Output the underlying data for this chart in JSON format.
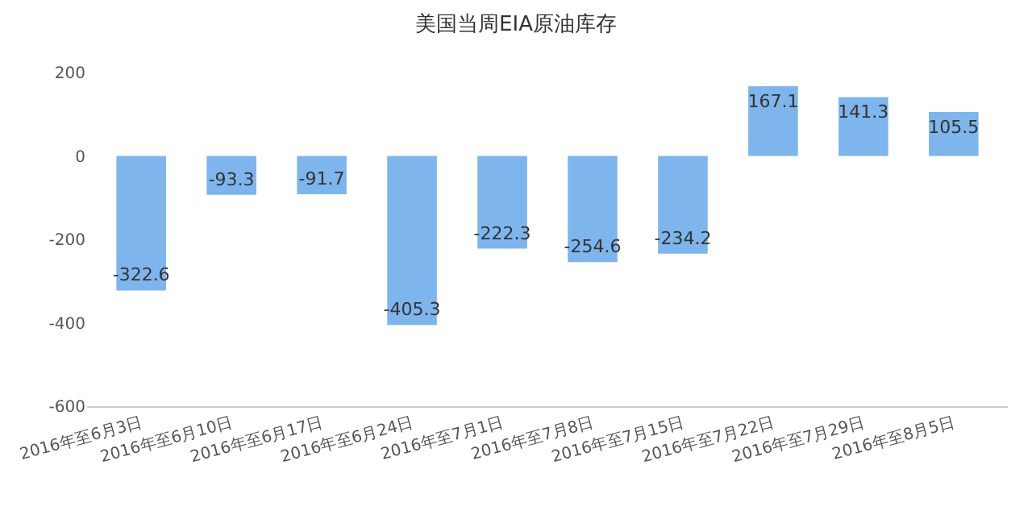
{
  "chart_data": {
    "type": "bar",
    "title": "美国当周EIA原油库存",
    "categories": [
      "2016年至6月3日",
      "2016年至6月10日",
      "2016年至6月17日",
      "2016年至6月24日",
      "2016年至7月1日",
      "2016年至7月8日",
      "2016年至7月15日",
      "2016年至7月22日",
      "2016年至7月29日",
      "2016年至8月5日"
    ],
    "values": [
      -322.6,
      -93.3,
      -91.7,
      -405.3,
      -222.3,
      -254.6,
      -234.2,
      167.1,
      141.3,
      105.5
    ],
    "color": "#7db5ec",
    "ylim": [
      -600,
      200
    ],
    "yticks": [
      -600,
      -400,
      -200,
      0,
      200
    ],
    "data_labels": true,
    "grid": false
  }
}
